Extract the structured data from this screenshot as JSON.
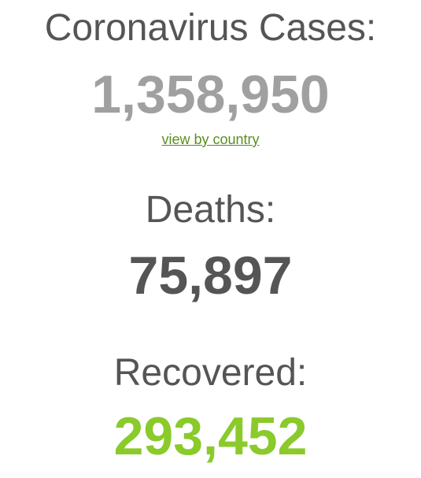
{
  "cases": {
    "title": "Coronavirus Cases:",
    "count": "1,358,950",
    "color": "#a0a0a0",
    "link_text": "view by country",
    "link_color": "#5a8f1f"
  },
  "deaths": {
    "title": "Deaths:",
    "count": "75,897",
    "color": "#555555"
  },
  "recovered": {
    "title": "Recovered:",
    "count": "293,452",
    "color": "#8ACA2B"
  }
}
